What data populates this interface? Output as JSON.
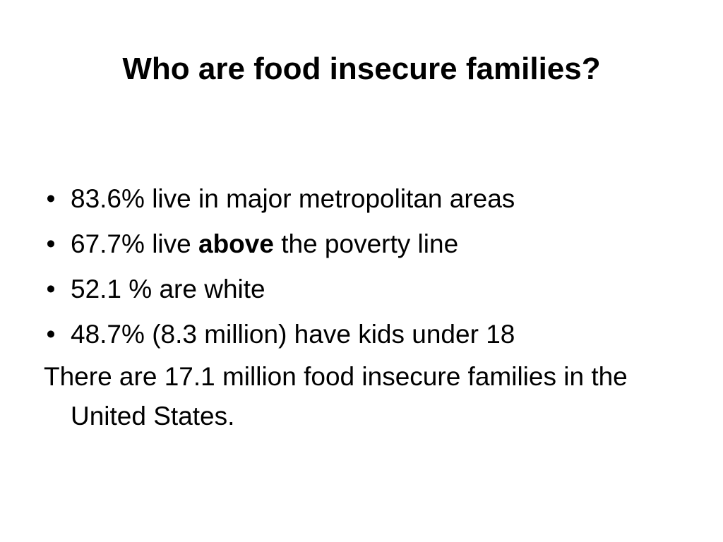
{
  "slide": {
    "title": "Who are food insecure families?",
    "bullets": [
      {
        "text": "83.6% live in major metropolitan areas"
      },
      {
        "before": "67.7% live ",
        "emphasis": "above",
        "after": " the poverty line"
      },
      {
        "text": "52.1 % are white"
      },
      {
        "text": "48.7% (8.3 million) have kids under 18"
      }
    ],
    "bullet_glyph": "•",
    "summary": "There are 17.1 million food insecure families in the United States."
  }
}
